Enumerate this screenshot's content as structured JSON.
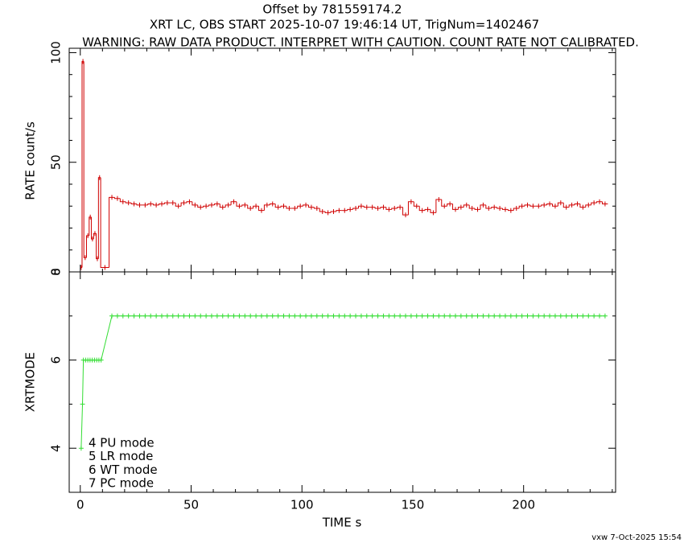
{
  "chart_data": [
    {
      "type": "histogram",
      "title": "Offset by 781559174.2",
      "subtitle": "XRT LC, OBS START 2025-10-07 19:46:14 UT, TrigNum=1402467",
      "annotation": "WARNING: RAW DATA PRODUCT. INTERPRET WITH CAUTION. COUNT RATE NOT CALIBRATED.",
      "ylabel": "RATE  count/s",
      "color": "#d00000",
      "bins": [
        0,
        0.8,
        1.6,
        2.8,
        4,
        5,
        6,
        7.2,
        8.2,
        9.2,
        13,
        15.5,
        18,
        20.5,
        23,
        25.5,
        28,
        30.5,
        33,
        35.5,
        38,
        40.5,
        43,
        45.5,
        48,
        50.5,
        53,
        55.5,
        58,
        60.5,
        63,
        65.5,
        68,
        70.5,
        73,
        75.5,
        78,
        80.5,
        83,
        85.5,
        88,
        90.5,
        93,
        95.5,
        98,
        100.5,
        103,
        105.5,
        108,
        110.5,
        113,
        115.5,
        118,
        120.5,
        123,
        125.5,
        128,
        130.5,
        133,
        135.5,
        138,
        140.5,
        143,
        145.5,
        148,
        150.5,
        153,
        155.5,
        158,
        160.5,
        163,
        165.5,
        168,
        170.5,
        173,
        175.5,
        178,
        180.5,
        183,
        185.5,
        188,
        190.5,
        193,
        195.5,
        198,
        200.5,
        203,
        205.5,
        208,
        210.5,
        213,
        215.5,
        218,
        220.5,
        223,
        225.5,
        228,
        230.5,
        233,
        235.5,
        238
      ],
      "values": [
        2,
        96,
        6.5,
        16.5,
        25,
        15,
        17.5,
        6,
        43,
        2,
        34,
        33.5,
        32,
        31.5,
        31,
        30.5,
        30.5,
        31,
        30.5,
        31,
        31.5,
        31.5,
        30,
        31.5,
        32,
        30.5,
        29.5,
        30,
        30.5,
        31,
        29.5,
        30.5,
        32,
        30,
        30.5,
        29,
        30,
        28,
        30.5,
        31,
        29.5,
        30,
        29,
        29,
        30,
        30.5,
        29.5,
        29,
        27.5,
        27,
        27.5,
        28,
        28,
        28.5,
        29,
        30,
        29.5,
        29.5,
        29,
        29.5,
        28.5,
        29,
        29.5,
        26,
        32,
        30,
        28,
        28.5,
        27,
        33,
        30,
        31,
        28.5,
        29.5,
        30.5,
        29,
        28.5,
        30.5,
        29,
        29.5,
        29,
        28.5,
        28,
        29,
        30,
        30.5,
        30,
        30,
        30.5,
        31,
        30,
        31.5,
        29.5,
        30.5,
        31,
        29.5,
        30.5,
        31.5,
        32,
        31
      ],
      "xlim": [
        -5,
        241.5
      ],
      "xticks": [
        0,
        50,
        100,
        150,
        200
      ],
      "xminorticks": [
        10,
        20,
        30,
        40,
        60,
        70,
        80,
        90,
        110,
        120,
        130,
        140,
        160,
        170,
        180,
        190,
        210,
        220,
        230,
        240
      ],
      "ylim": [
        0,
        102
      ],
      "yticks": [
        0,
        50,
        100
      ],
      "yminorticks": [
        10,
        20,
        30,
        40,
        60,
        70,
        80,
        90
      ]
    },
    {
      "type": "line",
      "ylabel": "XRTMODE",
      "xlabel": "TIME  s",
      "color": "#33dd33",
      "x": [
        0.4,
        1.0,
        1.4,
        2.4,
        3.4,
        4.4,
        5.4,
        6.4,
        7.4,
        8.4,
        9.4,
        14.25,
        16.75,
        19.25,
        21.75,
        24.25,
        26.75,
        29.25,
        31.75,
        34.25,
        36.75,
        39.25,
        41.75,
        44.25,
        46.75,
        49.25,
        51.75,
        54.25,
        56.75,
        59.25,
        61.75,
        64.25,
        66.75,
        69.25,
        71.75,
        74.25,
        76.75,
        79.25,
        81.75,
        84.25,
        86.75,
        89.25,
        91.75,
        94.25,
        96.75,
        99.25,
        101.75,
        104.25,
        106.75,
        109.25,
        111.75,
        114.25,
        116.75,
        119.25,
        121.75,
        124.25,
        126.75,
        129.25,
        131.75,
        134.25,
        136.75,
        139.25,
        141.75,
        144.25,
        146.75,
        149.25,
        151.75,
        154.25,
        156.75,
        159.25,
        161.75,
        164.25,
        166.75,
        169.25,
        171.75,
        174.25,
        176.75,
        179.25,
        181.75,
        184.25,
        186.75,
        189.25,
        191.75,
        194.25,
        196.75,
        199.25,
        201.75,
        204.25,
        206.75,
        209.25,
        211.75,
        214.25,
        216.75,
        219.25,
        221.75,
        224.25,
        226.75,
        229.25,
        231.75,
        234.25,
        236.75
      ],
      "values": [
        4,
        5,
        6,
        6,
        6,
        6,
        6,
        6,
        6,
        6,
        6,
        7,
        7,
        7,
        7,
        7,
        7,
        7,
        7,
        7,
        7,
        7,
        7,
        7,
        7,
        7,
        7,
        7,
        7,
        7,
        7,
        7,
        7,
        7,
        7,
        7,
        7,
        7,
        7,
        7,
        7,
        7,
        7,
        7,
        7,
        7,
        7,
        7,
        7,
        7,
        7,
        7,
        7,
        7,
        7,
        7,
        7,
        7,
        7,
        7,
        7,
        7,
        7,
        7,
        7,
        7,
        7,
        7,
        7,
        7,
        7,
        7,
        7,
        7,
        7,
        7,
        7,
        7,
        7,
        7,
        7,
        7,
        7,
        7,
        7,
        7,
        7,
        7,
        7,
        7,
        7,
        7,
        7,
        7,
        7,
        7,
        7,
        7,
        7,
        7,
        7
      ],
      "xlim": [
        -5,
        241.5
      ],
      "xticks": [
        0,
        50,
        100,
        150,
        200
      ],
      "xminorticks": [
        10,
        20,
        30,
        40,
        60,
        70,
        80,
        90,
        110,
        120,
        130,
        140,
        160,
        170,
        180,
        190,
        210,
        220,
        230,
        240
      ],
      "ylim": [
        3,
        8
      ],
      "yticks": [
        4,
        6,
        8
      ],
      "yminorticks": [
        5,
        7
      ],
      "annotations": [
        "4 PU mode",
        "5 LR mode",
        "6 WT mode",
        "7 PC mode"
      ]
    }
  ],
  "footer": "vxw  7-Oct-2025 15:54"
}
